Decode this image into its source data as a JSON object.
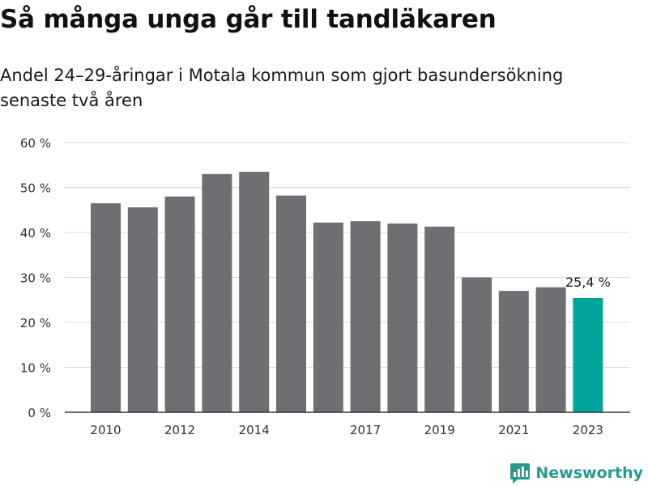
{
  "header": {
    "title": "Så många unga går till tandläkaren",
    "subtitle": "Andel 24–29-åringar i Motala kommun som gjort basundersökning senaste två åren"
  },
  "brand": {
    "name": "Newsworthy",
    "icon": "newsworthy-logo-icon",
    "color": "#2b9a8e"
  },
  "chart_data": {
    "type": "bar",
    "categories": [
      "2010",
      "2011",
      "2012",
      "2013",
      "2014",
      "2015",
      "2016",
      "2017",
      "2018",
      "2019",
      "2020",
      "2021",
      "2022",
      "2023"
    ],
    "tick_labels": [
      "2010",
      "",
      "2012",
      "",
      "2014",
      "",
      "",
      "2017",
      "",
      "2019",
      "",
      "2021",
      "",
      "2023"
    ],
    "values": [
      46.5,
      45.6,
      48.0,
      53.0,
      53.5,
      48.2,
      42.2,
      42.5,
      42.0,
      41.3,
      30.0,
      27.0,
      27.8,
      25.4
    ],
    "highlight_index": 13,
    "highlight_label": "25,4 %",
    "y_ticks": [
      "0 %",
      "10 %",
      "20 %",
      "30 %",
      "40 %",
      "50 %",
      "60 %"
    ],
    "ylim": [
      0,
      60
    ],
    "grid": true,
    "colors": {
      "bar": "#6e6e73",
      "highlight": "#00a49a",
      "grid": "#d9d9d9",
      "axis": "#333333"
    }
  }
}
